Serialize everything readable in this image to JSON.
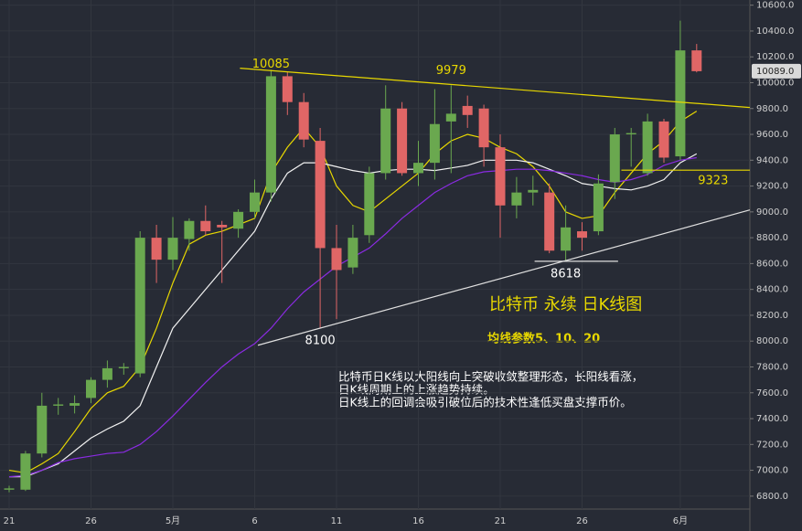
{
  "chart_data": {
    "type": "candlestick",
    "title": "比特币 永续 日K线图",
    "subtitle": "均线参数5、10、20",
    "notes": [
      "比特币日K线以大阳线向上突破收敛整理形态，长阳线看涨，",
      "日K线周期上的上涨趋势持续。",
      "日K线上的回调会吸引破位后的技术性逢低买盘支撑币价。"
    ],
    "categories": [
      "21",
      null,
      null,
      null,
      null,
      "26",
      null,
      null,
      null,
      null,
      "5月",
      null,
      null,
      null,
      null,
      "6",
      null,
      null,
      null,
      null,
      "11",
      null,
      null,
      null,
      null,
      "16",
      null,
      null,
      null,
      null,
      "21",
      null,
      null,
      null,
      null,
      "26",
      null,
      null,
      null,
      null,
      null,
      "6月",
      null
    ],
    "open": [
      6850,
      6850,
      7130,
      7500,
      7500,
      7560,
      7700,
      7790,
      7750,
      8800,
      8630,
      8790,
      8930,
      8900,
      8870,
      9000,
      9150,
      10050,
      9850,
      9550,
      8720,
      8570,
      8820,
      9300,
      9800,
      9300,
      9380,
      9700,
      9820,
      9800,
      9500,
      9050,
      9150,
      9150,
      8700,
      8850,
      8850,
      9230,
      9600,
      9300,
      9700,
      9430,
      10250
    ],
    "high": [
      6880,
      7150,
      7600,
      7560,
      7580,
      7720,
      7850,
      7830,
      8850,
      8900,
      8960,
      8950,
      9050,
      8930,
      9020,
      9250,
      10100,
      10080,
      9920,
      9650,
      8900,
      8900,
      9350,
      9980,
      9850,
      9550,
      9950,
      9980,
      9900,
      9830,
      9600,
      9270,
      9280,
      9220,
      9050,
      8920,
      9290,
      9650,
      9650,
      9760,
      9720,
      10480,
      10300
    ],
    "low": [
      6830,
      6840,
      7100,
      7430,
      7440,
      7520,
      7640,
      7740,
      7720,
      8450,
      8550,
      8700,
      8820,
      8450,
      8800,
      8950,
      9080,
      9750,
      9500,
      8100,
      8170,
      8520,
      8760,
      9250,
      9280,
      9200,
      9250,
      9300,
      9650,
      9350,
      8800,
      8950,
      9050,
      8680,
      8620,
      8700,
      8820,
      9100,
      9350,
      9280,
      9380,
      9400,
      10080
    ],
    "close": [
      6860,
      7130,
      7500,
      7510,
      7520,
      7700,
      7790,
      7800,
      8800,
      8630,
      8800,
      8930,
      8850,
      8880,
      9000,
      9150,
      10050,
      9850,
      9560,
      8720,
      8550,
      8800,
      9300,
      9800,
      9300,
      9380,
      9680,
      9760,
      9750,
      9500,
      9050,
      9150,
      9170,
      8700,
      8880,
      8800,
      9220,
      9600,
      9610,
      9700,
      9420,
      10250,
      10089
    ],
    "up_color": "#6aa84f",
    "down_color": "#e06666",
    "moving_averages": [
      {
        "color": "#e8d800",
        "values": [
          7000,
          6980,
          7050,
          7130,
          7300,
          7480,
          7600,
          7650,
          7800,
          8100,
          8450,
          8750,
          8820,
          8850,
          8900,
          8950,
          9300,
          9500,
          9650,
          9500,
          9200,
          9050,
          9000,
          9100,
          9200,
          9300,
          9450,
          9550,
          9600,
          9570,
          9500,
          9450,
          9350,
          9200,
          9000,
          8950,
          8970,
          9150,
          9300,
          9450,
          9550,
          9700,
          9780
        ]
      },
      {
        "color": "#f2f2f2",
        "values": [
          6950,
          6950,
          7000,
          7050,
          7150,
          7250,
          7320,
          7380,
          7500,
          7800,
          8100,
          8250,
          8400,
          8550,
          8700,
          8850,
          9100,
          9300,
          9380,
          9380,
          9350,
          9320,
          9300,
          9320,
          9330,
          9330,
          9320,
          9340,
          9360,
          9400,
          9400,
          9400,
          9380,
          9330,
          9280,
          9220,
          9200,
          9180,
          9170,
          9200,
          9250,
          9380,
          9450
        ]
      },
      {
        "color": "#8a2be2",
        "values": [
          6950,
          6960,
          7000,
          7060,
          7090,
          7110,
          7130,
          7140,
          7200,
          7300,
          7420,
          7550,
          7680,
          7800,
          7900,
          7980,
          8100,
          8250,
          8380,
          8480,
          8580,
          8650,
          8720,
          8830,
          8950,
          9050,
          9150,
          9220,
          9280,
          9310,
          9320,
          9330,
          9330,
          9320,
          9300,
          9280,
          9250,
          9230,
          9250,
          9290,
          9360,
          9400,
          9420
        ]
      }
    ],
    "trendlines": [
      {
        "color": "#e8d800",
        "points": [
          [
            14.1,
            10112
          ],
          [
            45.25,
            9808
          ]
        ]
      },
      {
        "color": "#e0e0e0",
        "points": [
          [
            15.2,
            7968
          ],
          [
            45.25,
            9015
          ]
        ]
      },
      {
        "color": "#e8d800",
        "points": [
          [
            37.4,
            9323
          ],
          [
            45.25,
            9323
          ]
        ]
      },
      {
        "color": "#e0e0e0",
        "points": [
          [
            32.1,
            8618
          ],
          [
            37.2,
            8618
          ]
        ]
      }
    ],
    "annotations": [
      {
        "text": "10085",
        "index": 16,
        "value": 10085,
        "color": "#e8d800"
      },
      {
        "text": "9979",
        "index": 27,
        "value": 9979,
        "color": "#e8d800"
      },
      {
        "text": "8100",
        "index": 19,
        "value": 8100,
        "color": "#ffffff"
      },
      {
        "text": "8618",
        "index": 34,
        "value": 8618,
        "color": "#ffffff"
      },
      {
        "text": "9323",
        "index": 42,
        "value": 9323,
        "color": "#e8d800"
      }
    ],
    "price_label": {
      "value": 10089,
      "label": "10089.0"
    },
    "ylim": [
      6700,
      10640
    ],
    "yticks": [
      {
        "value": 6800,
        "label": "6800.0"
      },
      {
        "value": 7000,
        "label": "7000.0"
      },
      {
        "value": 7200,
        "label": "7200.0"
      },
      {
        "value": 7400,
        "label": "7400.0"
      },
      {
        "value": 7600,
        "label": "7600.0"
      },
      {
        "value": 7800,
        "label": "7800.0"
      },
      {
        "value": 8000,
        "label": "8000.0"
      },
      {
        "value": 8200,
        "label": "8200.0"
      },
      {
        "value": 8400,
        "label": "8400.0"
      },
      {
        "value": 8600,
        "label": "8600.0"
      },
      {
        "value": 8800,
        "label": "8800.0"
      },
      {
        "value": 9000,
        "label": "9000.0"
      },
      {
        "value": 9200,
        "label": "9200.0"
      },
      {
        "value": 9400,
        "label": "9400.0"
      },
      {
        "value": 9600,
        "label": "9600.0"
      },
      {
        "value": 9800,
        "label": "9800.0"
      },
      {
        "value": 10000,
        "label": "10000.0"
      },
      {
        "value": 10200,
        "label": "10200.0"
      },
      {
        "value": 10400,
        "label": "10400.0"
      },
      {
        "value": 10600,
        "label": "10600.0"
      }
    ],
    "grid": true
  }
}
